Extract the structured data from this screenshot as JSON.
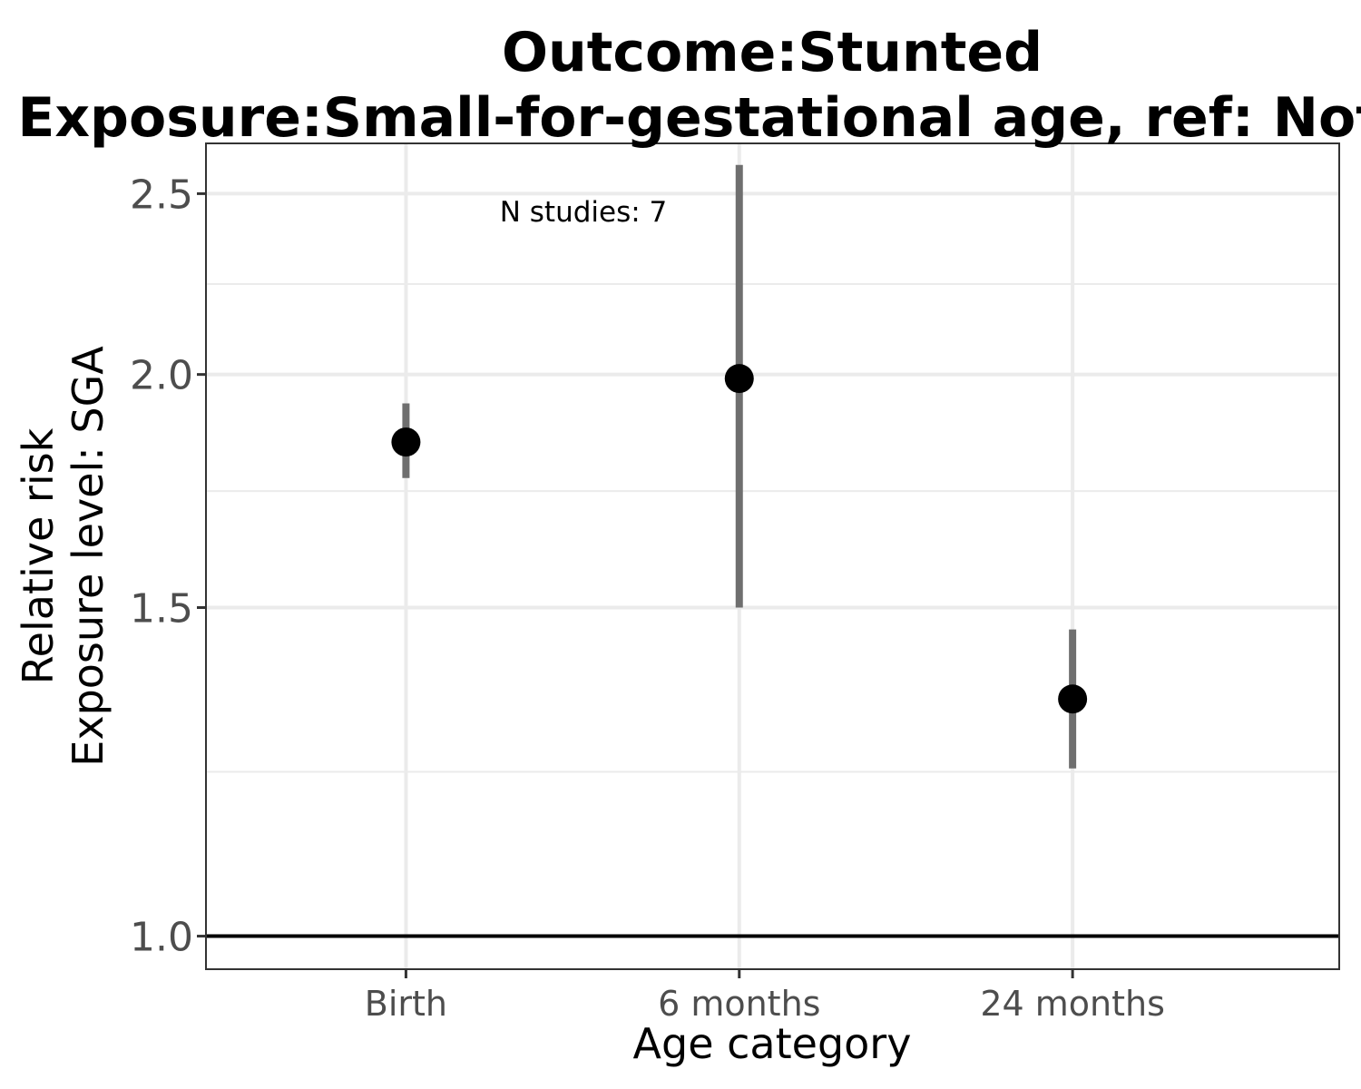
{
  "chart_data": {
    "type": "scatter",
    "title": "Outcome:Stunted",
    "subtitle": "Exposure:Small-for-gestational age, ref: Not SGA",
    "xlabel": "Age category",
    "ylabel_line1": "Relative risk",
    "ylabel_line2": "Exposure level: SGA",
    "categories": [
      "Birth",
      "6 months",
      "24 months"
    ],
    "y_ticks": [
      1.0,
      1.5,
      2.0,
      2.5
    ],
    "y_tick_labels": [
      "1.0",
      "1.5",
      "2.0",
      "2.5"
    ],
    "y_scale": "log",
    "ylim": [
      0.96,
      2.66
    ],
    "reference_line": 1.0,
    "annotation": "N studies: 7",
    "series": [
      {
        "points": [
          {
            "x": "Birth",
            "y": 1.84,
            "ci_lower": 1.76,
            "ci_upper": 1.93
          },
          {
            "x": "6 months",
            "y": 1.99,
            "ci_lower": 1.5,
            "ci_upper": 2.59
          },
          {
            "x": "24 months",
            "y": 1.34,
            "ci_lower": 1.23,
            "ci_upper": 1.46
          }
        ]
      }
    ],
    "grid": true,
    "colors": {
      "point": "#000000",
      "interval": "#6f6f6f",
      "grid": "#ebebeb",
      "reference": "#000000"
    }
  }
}
